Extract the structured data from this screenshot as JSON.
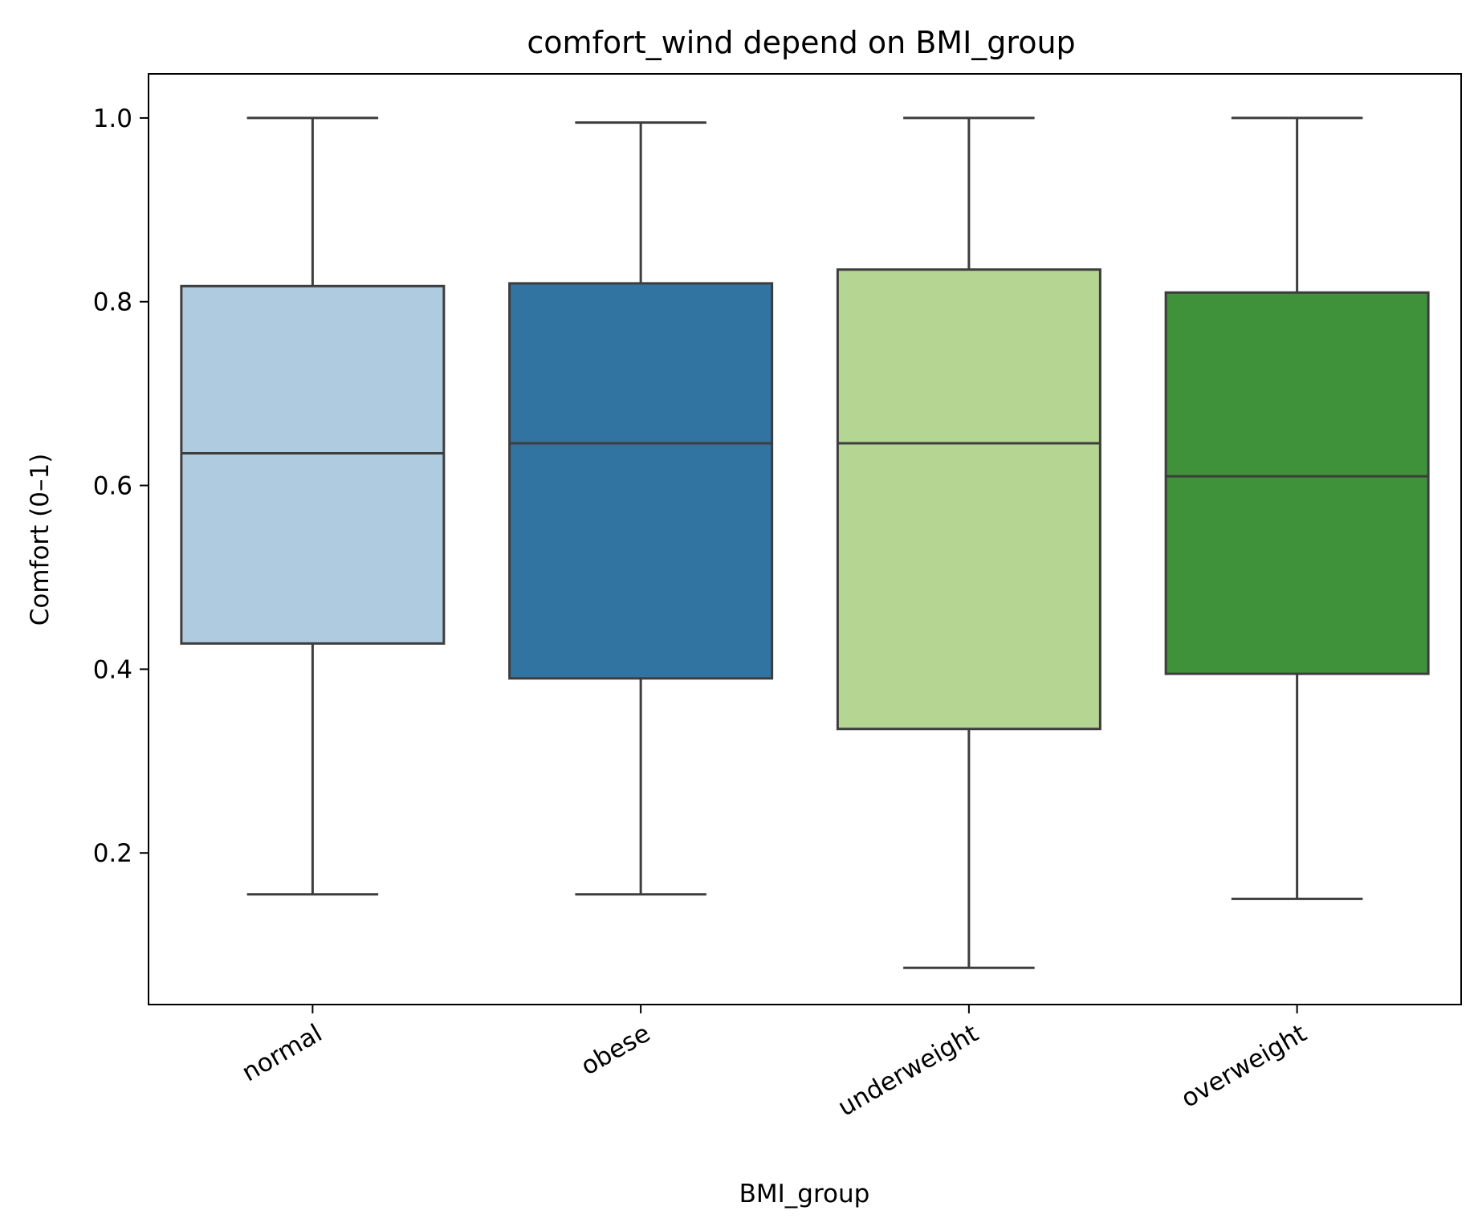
{
  "chart_data": {
    "type": "box",
    "title": "comfort_wind depend on BMI_group",
    "xlabel": "BMI_group",
    "ylabel": "Comfort (0–1)",
    "categories": [
      "normal",
      "obese",
      "underweight",
      "overweight"
    ],
    "ylim": [
      0.035,
      1.048
    ],
    "yticks": [
      "0.2",
      "0.4",
      "0.6",
      "0.8",
      "1.0"
    ],
    "grid": false,
    "legend": "none",
    "boxes": [
      {
        "category": "normal",
        "whisker_low": 0.155,
        "q1": 0.428,
        "median": 0.635,
        "q3": 0.817,
        "whisker_high": 1.0,
        "color": "#aecbdf"
      },
      {
        "category": "obese",
        "whisker_low": 0.155,
        "q1": 0.39,
        "median": 0.646,
        "q3": 0.82,
        "whisker_high": 0.995,
        "color": "#3274a1"
      },
      {
        "category": "underweight",
        "whisker_low": 0.075,
        "q1": 0.335,
        "median": 0.646,
        "q3": 0.835,
        "whisker_high": 1.0,
        "color": "#b5d593"
      },
      {
        "category": "overweight",
        "whisker_low": 0.15,
        "q1": 0.395,
        "median": 0.61,
        "q3": 0.81,
        "whisker_high": 1.0,
        "color": "#3f923a"
      }
    ],
    "line_color": "#3d3d3d"
  }
}
